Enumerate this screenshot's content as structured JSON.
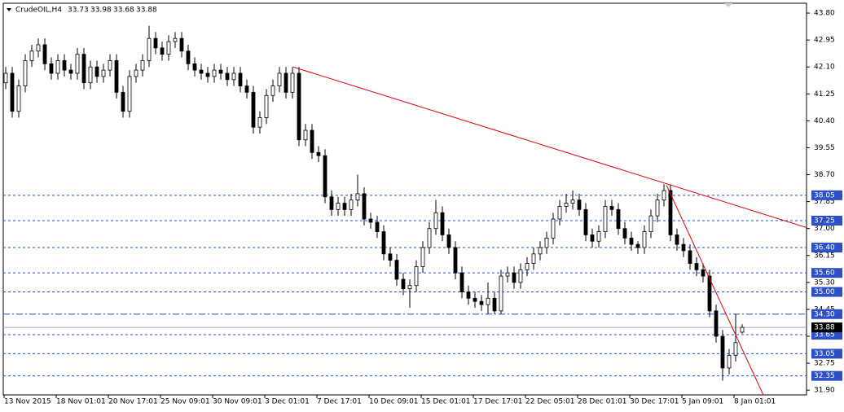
{
  "chart_data": {
    "type": "candlestick",
    "symbol": "CrudeOIL,H4",
    "categories": [
      "13 Nov 2015",
      null,
      null,
      null,
      null,
      null,
      null,
      null,
      "18 Nov 01:01",
      null,
      null,
      null,
      null,
      null,
      null,
      null,
      "20 Nov 17:01",
      null,
      null,
      null,
      null,
      null,
      null,
      null,
      "25 Nov 09:01",
      null,
      null,
      null,
      null,
      null,
      null,
      null,
      "30 Nov 09:01",
      null,
      null,
      null,
      null,
      null,
      null,
      null,
      "3 Dec 01:01",
      null,
      null,
      null,
      null,
      null,
      null,
      null,
      "7 Dec 17:01",
      null,
      null,
      null,
      null,
      null,
      null,
      null,
      "10 Dec 09:01",
      null,
      null,
      null,
      null,
      null,
      null,
      null,
      "15 Dec 01:01",
      null,
      null,
      null,
      null,
      null,
      null,
      null,
      "17 Dec 17:01",
      null,
      null,
      null,
      null,
      null,
      null,
      null,
      "22 Dec 05:01",
      null,
      null,
      null,
      null,
      null,
      null,
      null,
      "28 Dec 01:01",
      null,
      null,
      null,
      null,
      null,
      null,
      null,
      "30 Dec 17:01",
      null,
      null,
      null,
      null,
      null,
      null,
      null,
      "5 Jan 09:01",
      null,
      null,
      null,
      null,
      null,
      null,
      null,
      "8 Jan 01:01",
      null
    ],
    "open": [
      41.6,
      41.9,
      40.7,
      41.5,
      42.3,
      42.6,
      42.8,
      42.2,
      41.9,
      42.3,
      42.0,
      41.9,
      42.5,
      41.6,
      42.1,
      41.8,
      42.0,
      42.3,
      41.3,
      40.7,
      41.8,
      42.0,
      42.3,
      43.0,
      42.7,
      42.5,
      42.9,
      43.0,
      42.6,
      42.2,
      42.0,
      41.9,
      41.8,
      42.0,
      41.9,
      41.7,
      41.9,
      41.5,
      41.3,
      40.2,
      40.5,
      41.2,
      41.5,
      41.9,
      41.3,
      41.9,
      39.8,
      40.1,
      39.4,
      39.3,
      38.0,
      37.6,
      37.8,
      37.6,
      37.9,
      38.1,
      37.3,
      37.2,
      36.9,
      36.2,
      36.0,
      35.4,
      35.1,
      35.2,
      35.8,
      36.4,
      37.0,
      37.5,
      36.8,
      36.4,
      35.6,
      35.0,
      34.8,
      34.7,
      34.6,
      34.8,
      34.4,
      35.5,
      35.6,
      35.3,
      35.7,
      35.9,
      36.2,
      36.4,
      36.7,
      37.3,
      37.7,
      37.8,
      37.9,
      37.6,
      36.8,
      36.6,
      36.9,
      37.7,
      37.6,
      37.0,
      36.7,
      36.5,
      36.4,
      36.9,
      37.4,
      37.9,
      38.2,
      36.8,
      36.5,
      36.3,
      35.9,
      35.7,
      35.5,
      34.4,
      33.6,
      32.6,
      33.0,
      33.73
    ],
    "high": [
      42.1,
      42.1,
      41.7,
      42.5,
      42.8,
      43.0,
      43.0,
      42.4,
      42.5,
      42.5,
      42.2,
      42.7,
      42.7,
      42.3,
      42.3,
      42.2,
      42.5,
      42.5,
      41.5,
      42.0,
      42.2,
      42.5,
      43.4,
      43.2,
      42.9,
      43.1,
      43.2,
      43.2,
      42.8,
      42.4,
      42.2,
      42.1,
      42.2,
      42.2,
      42.1,
      42.1,
      42.1,
      41.7,
      41.5,
      40.7,
      41.4,
      41.7,
      42.1,
      42.1,
      42.1,
      42.1,
      40.3,
      40.3,
      39.6,
      39.5,
      38.2,
      38.0,
      38.0,
      38.1,
      38.7,
      38.3,
      37.5,
      37.4,
      37.1,
      36.4,
      36.2,
      35.6,
      35.4,
      36.0,
      36.6,
      37.2,
      37.9,
      37.7,
      37.0,
      36.6,
      35.8,
      35.2,
      35.0,
      34.9,
      35.3,
      35.0,
      35.7,
      35.8,
      35.8,
      35.9,
      36.1,
      36.4,
      36.6,
      36.9,
      37.5,
      37.9,
      38.1,
      38.2,
      38.1,
      37.8,
      37.0,
      37.1,
      37.9,
      37.9,
      37.8,
      37.2,
      36.9,
      36.6,
      37.1,
      37.6,
      38.1,
      38.4,
      38.4,
      37.0,
      36.7,
      36.5,
      36.1,
      35.9,
      35.7,
      34.6,
      33.8,
      33.2,
      34.3,
      33.98
    ],
    "low": [
      41.4,
      40.5,
      40.5,
      41.3,
      42.1,
      42.4,
      42.0,
      41.7,
      41.7,
      41.8,
      41.7,
      41.7,
      41.4,
      41.4,
      41.6,
      41.6,
      41.8,
      41.1,
      40.5,
      40.5,
      41.6,
      41.8,
      42.1,
      42.5,
      42.3,
      42.3,
      42.7,
      42.4,
      42.0,
      41.8,
      41.7,
      41.6,
      41.6,
      41.7,
      41.5,
      41.5,
      41.3,
      41.1,
      40.0,
      40.0,
      40.3,
      41.0,
      41.3,
      41.1,
      41.1,
      39.6,
      39.6,
      39.2,
      39.1,
      37.8,
      37.4,
      37.4,
      37.4,
      37.4,
      37.7,
      37.1,
      37.0,
      36.7,
      36.0,
      35.8,
      35.2,
      34.9,
      34.5,
      35.0,
      35.6,
      36.2,
      36.8,
      36.6,
      36.2,
      35.4,
      34.8,
      34.6,
      34.5,
      34.4,
      34.3,
      34.3,
      34.3,
      35.3,
      35.1,
      35.1,
      35.5,
      35.7,
      36.0,
      36.2,
      36.5,
      37.1,
      37.5,
      37.6,
      37.4,
      36.6,
      36.4,
      36.4,
      36.7,
      37.4,
      36.8,
      36.5,
      36.3,
      36.2,
      36.2,
      36.7,
      37.2,
      37.7,
      36.6,
      36.3,
      36.1,
      35.7,
      35.5,
      35.3,
      34.2,
      33.4,
      32.2,
      32.4,
      32.8,
      33.68
    ],
    "close": [
      41.9,
      40.7,
      41.5,
      42.3,
      42.6,
      42.8,
      42.2,
      41.9,
      42.3,
      42.0,
      41.9,
      42.5,
      41.6,
      42.1,
      41.8,
      42.0,
      42.3,
      41.3,
      40.7,
      41.8,
      42.0,
      42.3,
      43.0,
      42.7,
      42.5,
      42.9,
      43.0,
      42.6,
      42.2,
      42.0,
      41.9,
      41.8,
      42.0,
      41.9,
      41.7,
      41.9,
      41.5,
      41.3,
      40.2,
      40.5,
      41.2,
      41.5,
      41.9,
      41.3,
      41.9,
      39.8,
      40.1,
      39.4,
      39.3,
      38.0,
      37.6,
      37.8,
      37.6,
      37.9,
      38.1,
      37.3,
      37.2,
      36.9,
      36.2,
      36.0,
      35.4,
      35.1,
      35.2,
      35.8,
      36.4,
      37.0,
      37.5,
      36.8,
      36.4,
      35.6,
      35.0,
      34.8,
      34.7,
      34.6,
      34.8,
      34.4,
      35.5,
      35.6,
      35.3,
      35.7,
      35.9,
      36.2,
      36.4,
      36.7,
      37.3,
      37.7,
      37.8,
      37.9,
      37.6,
      36.8,
      36.6,
      36.9,
      37.7,
      37.6,
      37.0,
      36.7,
      36.5,
      36.4,
      36.9,
      37.4,
      37.9,
      38.2,
      36.8,
      36.5,
      36.3,
      35.9,
      35.7,
      35.5,
      34.4,
      33.6,
      32.6,
      33.0,
      33.4,
      33.88
    ],
    "ylim": [
      31.75,
      44.11
    ],
    "yticks": [
      {
        "value": 43.8,
        "label": "43.80"
      },
      42.95,
      {
        "value": 42.1,
        "label": "42.10"
      },
      41.25,
      {
        "value": 40.4,
        "label": "40.40"
      },
      39.55,
      {
        "value": 38.7,
        "label": "38.70"
      },
      37.85,
      {
        "value": 37.0,
        "label": "37.00"
      },
      36.15,
      {
        "value": 35.3,
        "label": "35.30"
      },
      34.45,
      {
        "value": 33.6,
        "label": "33.60"
      },
      32.75,
      {
        "value": 31.9,
        "label": "31.90"
      }
    ],
    "levels": [
      {
        "value": 38.05,
        "label": "38.05"
      },
      {
        "value": 37.25,
        "label": "37.25"
      },
      {
        "value": 36.4,
        "label": "36.40"
      },
      {
        "value": 35.6,
        "label": "35.60"
      },
      {
        "value": 35.0,
        "label": "35.00"
      },
      {
        "value": 34.3,
        "label": "34.30"
      },
      {
        "value": 33.65,
        "label": "33.65"
      },
      {
        "value": 33.05,
        "label": "33.05"
      },
      {
        "value": 32.35,
        "label": "32.35"
      }
    ],
    "level_color": "#2d4fc4",
    "bid": 33.88,
    "trendlines": [
      {
        "x": [
          44.1,
          122.9
        ],
        "y": [
          42.1,
          37.03
        ],
        "color": "#e00000"
      },
      {
        "x": [
          101.4,
          116.25
        ],
        "y": [
          38.36,
          31.75
        ],
        "color": "#e00000"
      }
    ]
  }
}
